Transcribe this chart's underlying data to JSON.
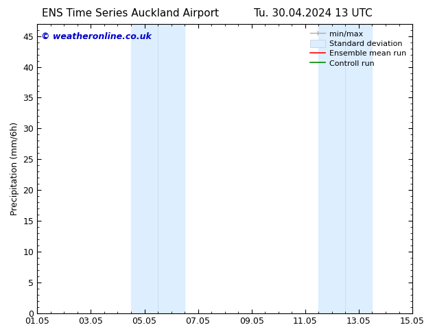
{
  "title_left": "ENS Time Series Auckland Airport",
  "title_right": "Tu. 30.04.2024 13 UTC",
  "ylabel": "Precipitation (mm/6h)",
  "xlabel": "",
  "ylim": [
    0,
    47
  ],
  "yticks": [
    0,
    5,
    10,
    15,
    20,
    25,
    30,
    35,
    40,
    45
  ],
  "xtick_labels": [
    "01.05",
    "03.05",
    "05.05",
    "07.05",
    "09.05",
    "11.05",
    "13.05",
    "15.05"
  ],
  "xtick_positions": [
    0,
    2,
    4,
    6,
    8,
    10,
    12,
    14
  ],
  "x_total_days": 14,
  "shaded_bands": [
    {
      "x_start": 3.5,
      "x_end": 4.5,
      "color": "#ddeeff"
    },
    {
      "x_start": 4.5,
      "x_end": 5.5,
      "color": "#ddeeff"
    },
    {
      "x_start": 10.5,
      "x_end": 11.5,
      "color": "#ddeeff"
    },
    {
      "x_start": 11.5,
      "x_end": 12.5,
      "color": "#ddeeff"
    }
  ],
  "shade_color": "#ddeeff",
  "shade_divider_color": "#c0d8f0",
  "background_color": "#ffffff",
  "watermark_text": "© weatheronline.co.uk",
  "watermark_color": "#0000cc",
  "legend_items": [
    {
      "label": "min/max",
      "color": "#aaaaaa",
      "linestyle": "-",
      "linewidth": 1.0
    },
    {
      "label": "Standard deviation",
      "color": "#ddeeff",
      "linestyle": "-",
      "linewidth": 8
    },
    {
      "label": "Ensemble mean run",
      "color": "#ff0000",
      "linestyle": "-",
      "linewidth": 1.2
    },
    {
      "label": "Controll run",
      "color": "#008800",
      "linestyle": "-",
      "linewidth": 1.2
    }
  ],
  "tick_direction": "in",
  "title_fontsize": 11,
  "axis_label_fontsize": 9,
  "tick_fontsize": 9,
  "watermark_fontsize": 9,
  "legend_fontsize": 8
}
